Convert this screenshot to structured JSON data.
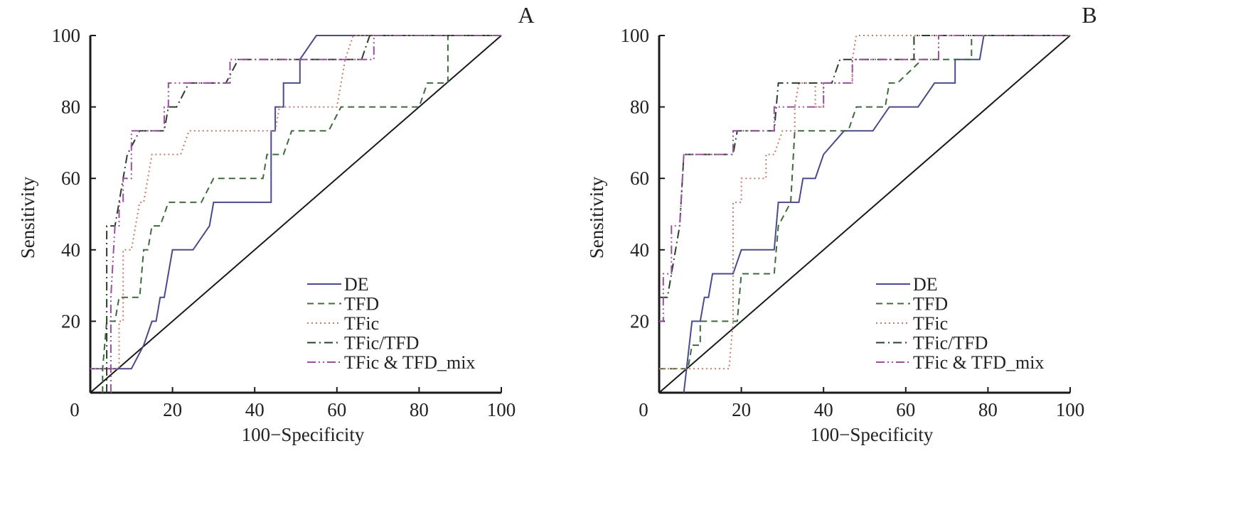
{
  "chart_data": [
    {
      "type": "line",
      "panel": "A",
      "title": "",
      "xlabel": "100−Specificity",
      "ylabel": "Sensitivity",
      "xlim": [
        0,
        100
      ],
      "ylim": [
        0,
        100
      ],
      "xticks": [
        "0",
        "20",
        "40",
        "60",
        "80",
        "100"
      ],
      "yticks": [
        "20",
        "40",
        "60",
        "80",
        "100"
      ],
      "grid": false,
      "legend_position": "bottom-right",
      "reference_line": {
        "name": "chance",
        "points": [
          [
            0,
            0
          ],
          [
            100,
            100
          ]
        ]
      },
      "series": [
        {
          "name": "DE",
          "style": "solid",
          "color": "#4a4a8c",
          "points": [
            [
              0,
              6.7
            ],
            [
              10,
              6.7
            ],
            [
              13,
              13.3
            ],
            [
              15,
              20
            ],
            [
              16,
              20
            ],
            [
              17,
              26.7
            ],
            [
              18,
              26.7
            ],
            [
              20,
              40
            ],
            [
              25,
              40
            ],
            [
              29,
              46.7
            ],
            [
              30,
              53.3
            ],
            [
              44,
              53.3
            ],
            [
              44,
              73.3
            ],
            [
              45,
              73.3
            ],
            [
              45,
              80
            ],
            [
              47,
              80
            ],
            [
              47,
              86.7
            ],
            [
              51,
              86.7
            ],
            [
              51,
              93.3
            ],
            [
              55,
              100
            ],
            [
              100,
              100
            ]
          ]
        },
        {
          "name": "TFD",
          "style": "dashed",
          "color": "#3d6b3d",
          "points": [
            [
              3,
              0
            ],
            [
              3,
              6.7
            ],
            [
              4,
              20
            ],
            [
              6,
              20
            ],
            [
              7,
              26.7
            ],
            [
              12,
              26.7
            ],
            [
              13,
              40
            ],
            [
              14,
              40
            ],
            [
              15,
              46.7
            ],
            [
              17,
              46.7
            ],
            [
              19,
              53.3
            ],
            [
              27,
              53.3
            ],
            [
              30,
              60
            ],
            [
              42,
              60
            ],
            [
              43,
              66.7
            ],
            [
              47,
              66.7
            ],
            [
              49,
              73.3
            ],
            [
              58,
              73.3
            ],
            [
              61,
              80
            ],
            [
              80,
              80
            ],
            [
              82,
              86.7
            ],
            [
              87,
              86.7
            ],
            [
              87,
              100
            ],
            [
              100,
              100
            ]
          ]
        },
        {
          "name": "TFic",
          "style": "dotted",
          "color": "#c77a6a",
          "points": [
            [
              0,
              6.7
            ],
            [
              7,
              6.7
            ],
            [
              7,
              20
            ],
            [
              8,
              20
            ],
            [
              8,
              40
            ],
            [
              10,
              40
            ],
            [
              11,
              46.7
            ],
            [
              12,
              53.3
            ],
            [
              13,
              53.3
            ],
            [
              15,
              66.7
            ],
            [
              22,
              66.7
            ],
            [
              24,
              73.3
            ],
            [
              45,
              73.3
            ],
            [
              46,
              80
            ],
            [
              60,
              80
            ],
            [
              61,
              86.7
            ],
            [
              62,
              93.3
            ],
            [
              64,
              100
            ],
            [
              100,
              100
            ]
          ]
        },
        {
          "name": "TFic/TFD",
          "style": "dashdot",
          "color": "#2a3f2a",
          "points": [
            [
              4,
              0
            ],
            [
              4,
              46.7
            ],
            [
              6,
              46.7
            ],
            [
              7,
              53.3
            ],
            [
              8,
              60
            ],
            [
              9,
              66.7
            ],
            [
              12,
              73.3
            ],
            [
              18,
              73.3
            ],
            [
              19,
              80
            ],
            [
              21,
              80
            ],
            [
              24,
              86.7
            ],
            [
              33,
              86.7
            ],
            [
              36,
              93.3
            ],
            [
              66,
              93.3
            ],
            [
              68,
              100
            ],
            [
              100,
              100
            ]
          ]
        },
        {
          "name": "TFic & TFD_mix",
          "style": "dashdotdot",
          "color": "#9a4fa0",
          "points": [
            [
              5,
              0
            ],
            [
              5,
              26.7
            ],
            [
              6,
              46.7
            ],
            [
              7,
              46.7
            ],
            [
              7,
              53.3
            ],
            [
              8,
              53.3
            ],
            [
              8,
              60
            ],
            [
              10,
              60
            ],
            [
              10,
              73.3
            ],
            [
              18,
              73.3
            ],
            [
              18,
              80
            ],
            [
              19,
              80
            ],
            [
              19,
              86.7
            ],
            [
              34,
              86.7
            ],
            [
              34,
              93.3
            ],
            [
              69,
              93.3
            ],
            [
              69,
              100
            ],
            [
              100,
              100
            ]
          ]
        }
      ]
    },
    {
      "type": "line",
      "panel": "B",
      "title": "",
      "xlabel": "100−Specificity",
      "ylabel": "Sensitivity",
      "xlim": [
        0,
        100
      ],
      "ylim": [
        0,
        100
      ],
      "xticks": [
        "0",
        "20",
        "40",
        "60",
        "80",
        "100"
      ],
      "yticks": [
        "20",
        "40",
        "60",
        "80",
        "100"
      ],
      "grid": false,
      "legend_position": "bottom-right",
      "reference_line": {
        "name": "chance",
        "points": [
          [
            0,
            0
          ],
          [
            100,
            100
          ]
        ]
      },
      "series": [
        {
          "name": "DE",
          "style": "solid",
          "color": "#4a4a8c",
          "points": [
            [
              6,
              0
            ],
            [
              8,
              20
            ],
            [
              10,
              20
            ],
            [
              11,
              26.7
            ],
            [
              12,
              26.7
            ],
            [
              13,
              33.3
            ],
            [
              18,
              33.3
            ],
            [
              20,
              40
            ],
            [
              28,
              40
            ],
            [
              29,
              53.3
            ],
            [
              34,
              53.3
            ],
            [
              35,
              60
            ],
            [
              38,
              60
            ],
            [
              40,
              66.7
            ],
            [
              45,
              73.3
            ],
            [
              52,
              73.3
            ],
            [
              56,
              80
            ],
            [
              63,
              80
            ],
            [
              67,
              86.7
            ],
            [
              72,
              86.7
            ],
            [
              72,
              93.3
            ],
            [
              78,
              93.3
            ],
            [
              79,
              100
            ],
            [
              100,
              100
            ]
          ]
        },
        {
          "name": "TFD",
          "style": "dashed",
          "color": "#3d6b3d",
          "points": [
            [
              0,
              6.7
            ],
            [
              7,
              6.7
            ],
            [
              8,
              13.3
            ],
            [
              10,
              13.3
            ],
            [
              10,
              20
            ],
            [
              19,
              20
            ],
            [
              20,
              33.3
            ],
            [
              28,
              33.3
            ],
            [
              29,
              46.7
            ],
            [
              32,
              53.3
            ],
            [
              33,
              73.3
            ],
            [
              46,
              73.3
            ],
            [
              48,
              80
            ],
            [
              55,
              80
            ],
            [
              56,
              86.7
            ],
            [
              58,
              86.7
            ],
            [
              64,
              93.3
            ],
            [
              76,
              93.3
            ],
            [
              76,
              100
            ],
            [
              100,
              100
            ]
          ]
        },
        {
          "name": "TFic",
          "style": "dotted",
          "color": "#c77a6a",
          "points": [
            [
              0,
              6.7
            ],
            [
              17,
              6.7
            ],
            [
              18,
              20
            ],
            [
              18,
              53.3
            ],
            [
              20,
              53.3
            ],
            [
              20,
              60
            ],
            [
              26,
              60
            ],
            [
              26,
              66.7
            ],
            [
              28,
              66.7
            ],
            [
              30,
              73.3
            ],
            [
              33,
              73.3
            ],
            [
              33,
              80
            ],
            [
              34,
              86.7
            ],
            [
              38,
              86.7
            ],
            [
              38,
              80
            ],
            [
              40,
              80
            ],
            [
              40,
              86.7
            ],
            [
              47,
              86.7
            ],
            [
              47,
              93.3
            ],
            [
              48,
              100
            ],
            [
              100,
              100
            ]
          ]
        },
        {
          "name": "TFic/TFD",
          "style": "dashdot",
          "color": "#2a3f2a",
          "points": [
            [
              0,
              26.7
            ],
            [
              2,
              26.7
            ],
            [
              3,
              33.3
            ],
            [
              4,
              40
            ],
            [
              5,
              46.7
            ],
            [
              6,
              66.7
            ],
            [
              18,
              66.7
            ],
            [
              19,
              73.3
            ],
            [
              28,
              73.3
            ],
            [
              29,
              86.7
            ],
            [
              42,
              86.7
            ],
            [
              44,
              93.3
            ],
            [
              62,
              93.3
            ],
            [
              62,
              100
            ],
            [
              100,
              100
            ]
          ]
        },
        {
          "name": "TFic & TFD_mix",
          "style": "dashdotdot",
          "color": "#9a4fa0",
          "points": [
            [
              0,
              20
            ],
            [
              1,
              20
            ],
            [
              1,
              33.3
            ],
            [
              3,
              33.3
            ],
            [
              3,
              46.7
            ],
            [
              5,
              46.7
            ],
            [
              6,
              66.7
            ],
            [
              18,
              66.7
            ],
            [
              18,
              73.3
            ],
            [
              28,
              73.3
            ],
            [
              28,
              80
            ],
            [
              40,
              80
            ],
            [
              40,
              86.7
            ],
            [
              47,
              86.7
            ],
            [
              47,
              93.3
            ],
            [
              68,
              93.3
            ],
            [
              68,
              100
            ],
            [
              100,
              100
            ]
          ]
        }
      ]
    }
  ]
}
